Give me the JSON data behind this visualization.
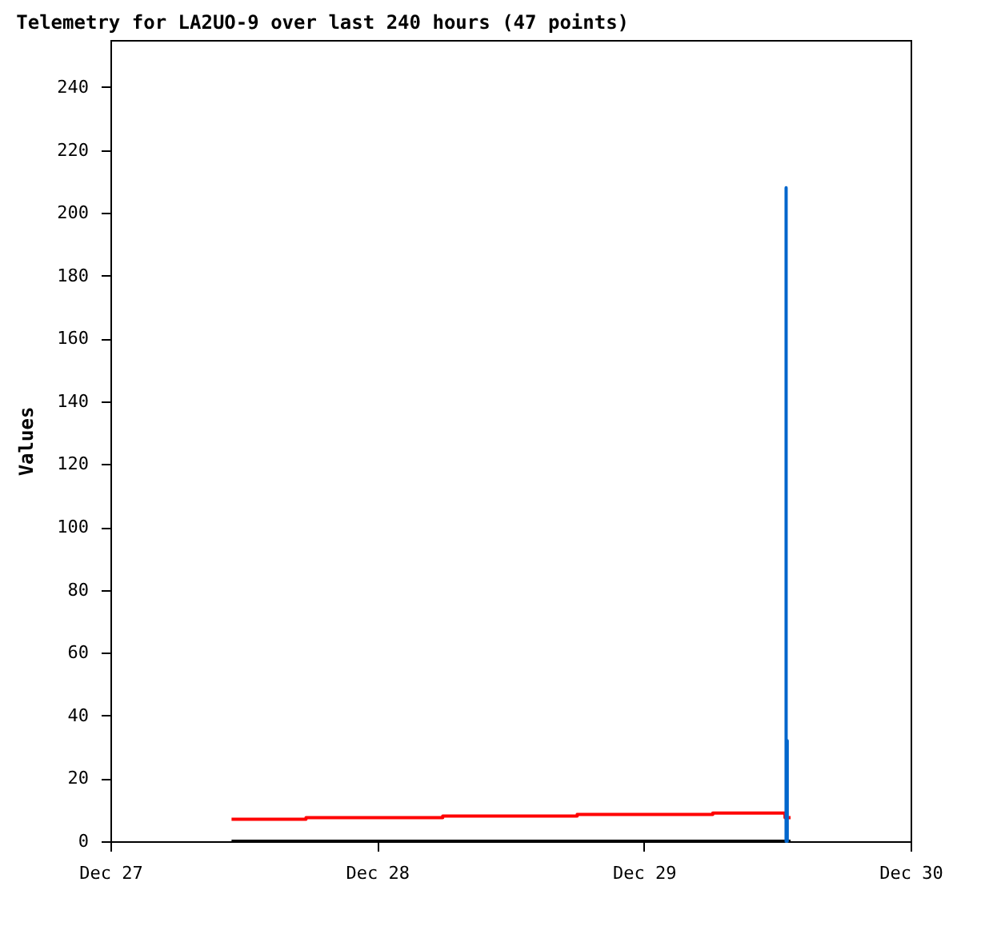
{
  "chart_data": {
    "type": "line",
    "title": "Telemetry for LA2UO-9 over last 240 hours (47 points)",
    "ylabel": "Values",
    "xlim": [
      "--12-27",
      "--12-30"
    ],
    "xticks": [
      {
        "value": "--12-27",
        "label": "Dec 27"
      },
      {
        "value": "--12-28",
        "label": "Dec 28"
      },
      {
        "value": "--12-29",
        "label": "Dec 29"
      },
      {
        "value": "--12-30",
        "label": "Dec 30"
      }
    ],
    "ylim": [
      0,
      255
    ],
    "yticks": [
      0,
      20,
      40,
      60,
      80,
      100,
      120,
      140,
      160,
      180,
      200,
      220,
      240
    ],
    "grid": false,
    "legend": false,
    "series": [
      {
        "type": "line",
        "color": "#000000",
        "x": [
          "--12-27T10:54",
          "--12-29T13:12"
        ],
        "values": [
          0,
          0
        ]
      },
      {
        "type": "step",
        "color": "#ff0000",
        "x": [
          "--12-27T10:54",
          "--12-27T17:36",
          "--12-28T05:54",
          "--12-28T18:00",
          "--12-29T06:12",
          "--12-29T12:42",
          "--12-29T13:12"
        ],
        "values": [
          7,
          7.5,
          8,
          8.5,
          9,
          7.5,
          7.5
        ]
      },
      {
        "type": "line",
        "color": "#0066cc",
        "x": [
          "--12-29T12:48",
          "--12-29T12:48",
          "--12-29T12:48",
          "--12-29T12:54",
          "--12-29T12:54",
          "--12-29T12:54"
        ],
        "values": [
          0,
          208,
          0,
          0,
          32,
          0
        ]
      }
    ]
  }
}
